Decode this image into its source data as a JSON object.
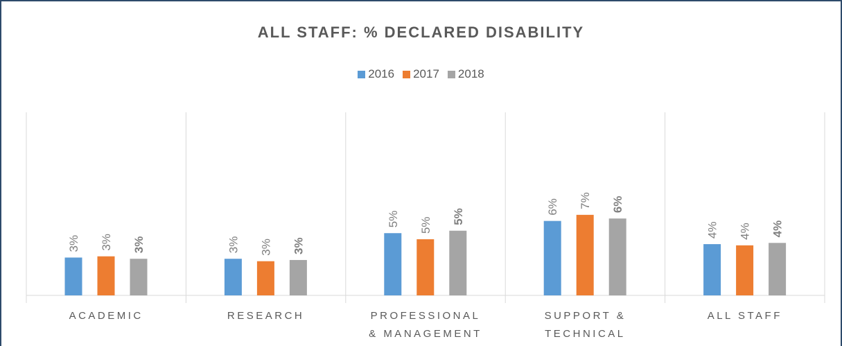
{
  "chart_data": {
    "type": "bar",
    "title": "ALL STAFF: % DECLARED DISABILITY",
    "categories": [
      "ACADEMIC",
      "RESEARCH",
      "PROFESSIONAL & MANAGEMENT",
      "SUPPORT & TECHNICAL",
      "ALL STAFF"
    ],
    "series": [
      {
        "name": "2016",
        "color": "#5b9bd5",
        "values": [
          3.1,
          3.0,
          5.1,
          6.1,
          4.2
        ],
        "value_labels": [
          "3%",
          "3%",
          "5%",
          "6%",
          "4%"
        ]
      },
      {
        "name": "2017",
        "color": "#ed7d31",
        "values": [
          3.2,
          2.8,
          4.6,
          6.6,
          4.1
        ],
        "value_labels": [
          "3%",
          "3%",
          "5%",
          "7%",
          "4%"
        ]
      },
      {
        "name": "2018",
        "color": "#a5a5a5",
        "values": [
          3.0,
          2.9,
          5.3,
          6.3,
          4.3
        ],
        "value_labels": [
          "3%",
          "3%",
          "5%",
          "6%",
          "4%"
        ],
        "bold_labels": true
      }
    ],
    "ylim": [
      0,
      15
    ],
    "legend": "top"
  }
}
